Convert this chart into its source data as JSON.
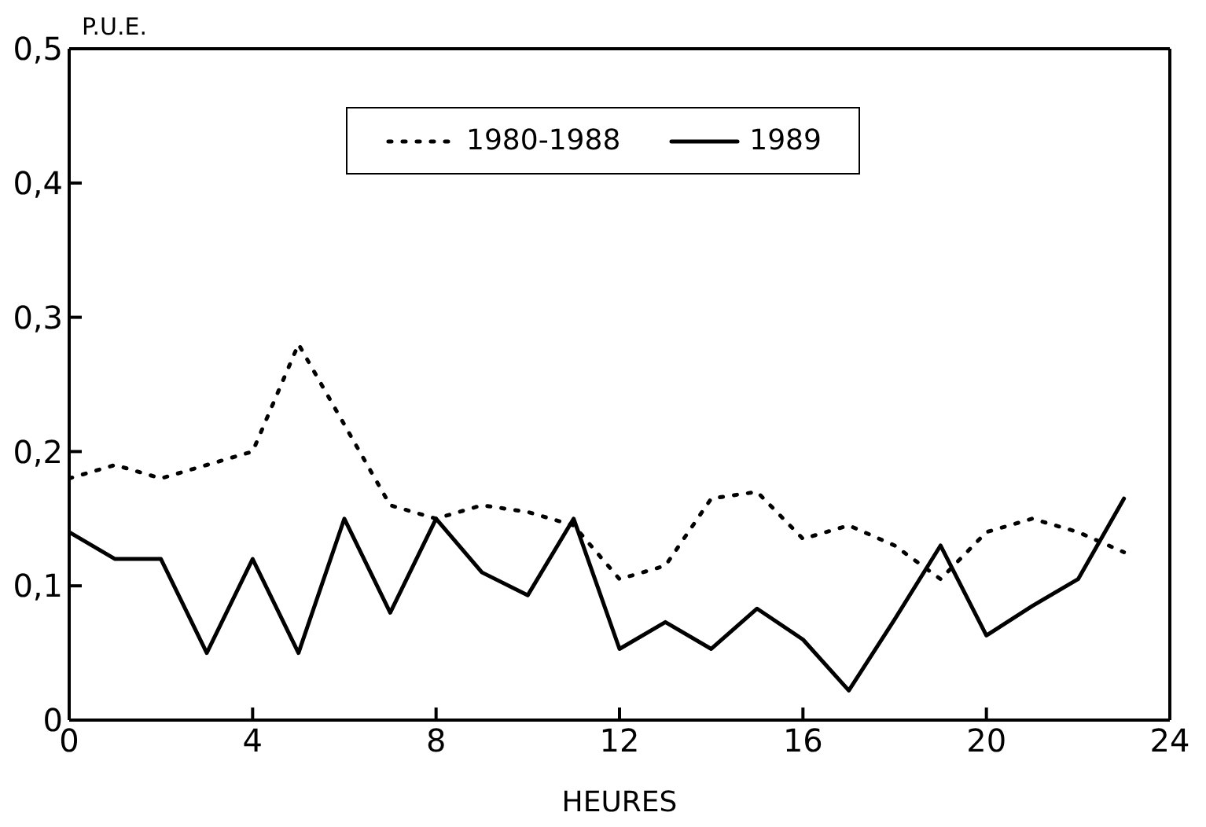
{
  "chart_data": {
    "type": "line",
    "xlabel": "HEURES",
    "ylabel": "P.U.E.",
    "x": [
      0,
      1,
      2,
      3,
      4,
      5,
      6,
      7,
      8,
      9,
      10,
      11,
      12,
      13,
      14,
      15,
      16,
      17,
      18,
      19,
      20,
      21,
      22,
      23
    ],
    "series": [
      {
        "name": "1980-1988",
        "color": "#000000",
        "line_style": "dotted",
        "values": [
          0.18,
          0.19,
          0.18,
          0.19,
          0.2,
          0.28,
          0.22,
          0.16,
          0.15,
          0.16,
          0.155,
          0.145,
          0.105,
          0.115,
          0.165,
          0.17,
          0.135,
          0.145,
          0.13,
          0.105,
          0.14,
          0.15,
          0.14,
          0.125
        ]
      },
      {
        "name": "1989",
        "color": "#000000",
        "line_style": "solid",
        "values": [
          0.14,
          0.12,
          0.12,
          0.05,
          0.12,
          0.05,
          0.15,
          0.08,
          0.15,
          0.11,
          0.093,
          0.15,
          0.053,
          0.073,
          0.053,
          0.083,
          0.06,
          0.022,
          0.075,
          0.13,
          0.063,
          0.085,
          0.105,
          0.165
        ]
      }
    ],
    "xlim": [
      0,
      24
    ],
    "xticks": [
      0,
      4,
      8,
      12,
      16,
      20,
      24
    ],
    "ylim": [
      0,
      0.5
    ],
    "yticks": [
      {
        "value": 0,
        "label": "0"
      },
      {
        "value": 0.1,
        "label": "0,1"
      },
      {
        "value": 0.2,
        "label": "0,2"
      },
      {
        "value": 0.3,
        "label": "0,3"
      },
      {
        "value": 0.4,
        "label": "0,4"
      },
      {
        "value": 0.5,
        "label": "0,5"
      }
    ],
    "grid": false,
    "legend": "top",
    "marker": "none"
  }
}
